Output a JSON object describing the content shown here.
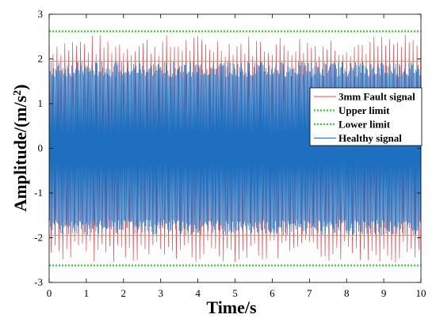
{
  "chart_data": {
    "type": "line",
    "xlabel": "Time/s",
    "ylabel_main": "Amplitude/(m/s",
    "ylabel_sup": "2",
    "ylabel_close": ")",
    "xlim": [
      0,
      10
    ],
    "ylim": [
      -3,
      3
    ],
    "xticks": [
      "0",
      "1",
      "2",
      "3",
      "4",
      "5",
      "6",
      "7",
      "8",
      "9",
      "10"
    ],
    "yticks": [
      "-3",
      "-2",
      "-1",
      "0",
      "1",
      "2",
      "3"
    ],
    "grid": false,
    "legend_position": "right",
    "series": [
      {
        "name": "3mm Fault signal",
        "color": "#e8484d",
        "style": "solid",
        "kind": "oscillation",
        "peak_max": 2.55,
        "peak_min": 2.05,
        "cycles": 95
      },
      {
        "name": "Upper limit",
        "color": "#33cc33",
        "style": "dotted",
        "kind": "constant",
        "value": 2.62
      },
      {
        "name": "Lower limit",
        "color": "#33cc33",
        "style": "dotted",
        "kind": "constant",
        "value": -2.62
      },
      {
        "name": "Healthy signal",
        "color": "#1f6fc0",
        "style": "solid",
        "kind": "oscillation",
        "peak_max": 1.95,
        "peak_min": 1.6,
        "cycles": 410
      }
    ],
    "extra_lines": [
      {
        "value": 1.95,
        "color": "#ccaa22"
      },
      {
        "value": -1.95,
        "color": "#ccaa22"
      }
    ]
  }
}
